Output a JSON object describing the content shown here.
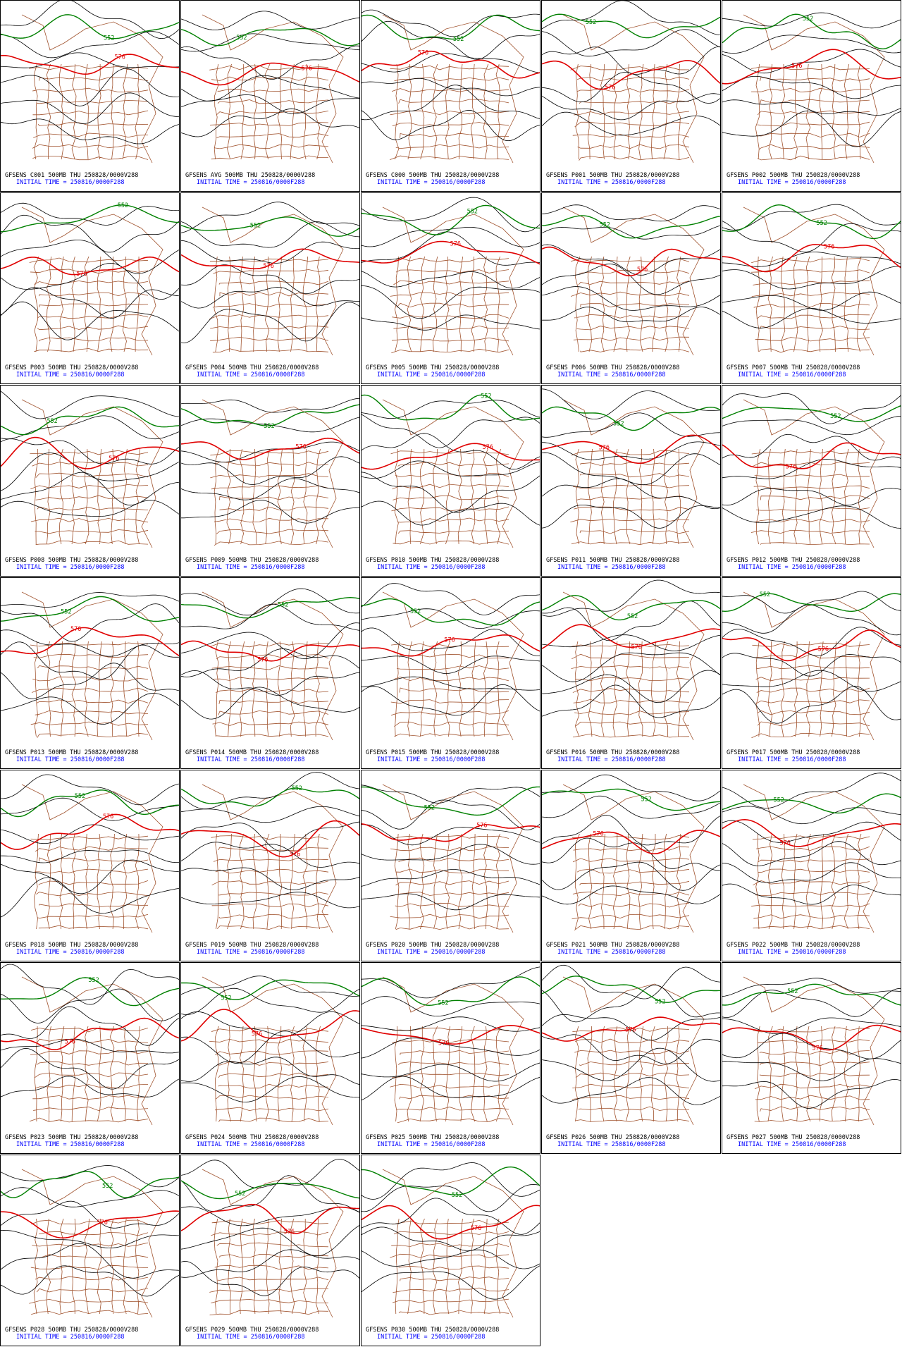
{
  "panels": [
    {
      "line1": "GFSENS C001 500MB THU 250828/0000V288",
      "line2": "INITIAL TIME = 250816/0000F288",
      "labels": [
        "552",
        "576"
      ]
    },
    {
      "line1": "GFSENS AVG 500MB THU 250828/0000V288",
      "line2": "INITIAL TIME = 250816/0000F288",
      "labels": [
        "552",
        "576"
      ]
    },
    {
      "line1": "GFSENS C000 500MB THU 250828/0000V288",
      "line2": "INITIAL TIME = 250816/0000F288",
      "labels": [
        "552",
        "576"
      ]
    },
    {
      "line1": "GFSENS P001 500MB THU 250828/0000V288",
      "line2": "INITIAL TIME = 250816/0000F288",
      "labels": [
        "552",
        "576"
      ]
    },
    {
      "line1": "GFSENS P002 500MB THU 250828/0000V288",
      "line2": "INITIAL TIME = 250816/0000F288",
      "labels": [
        "552",
        "576"
      ]
    },
    {
      "line1": "GFSENS P003 500MB THU 250828/0000V288",
      "line2": "INITIAL TIME = 250816/0000F288",
      "labels": [
        "552",
        "576"
      ]
    },
    {
      "line1": "GFSENS P004 500MB THU 250828/0000V288",
      "line2": "INITIAL TIME = 250816/0000F288",
      "labels": [
        "552",
        "576"
      ]
    },
    {
      "line1": "GFSENS P005 500MB THU 250828/0000V288",
      "line2": "INITIAL TIME = 250816/0000F288",
      "labels": [
        "552",
        "576"
      ]
    },
    {
      "line1": "GFSENS P006 500MB THU 250828/0000V288",
      "line2": "INITIAL TIME = 250816/0000F288",
      "labels": [
        "552",
        "576"
      ]
    },
    {
      "line1": "GFSENS P007 500MB THU 250828/0000V288",
      "line2": "INITIAL TIME = 250816/0000F288",
      "labels": [
        "552",
        "576"
      ]
    },
    {
      "line1": "GFSENS P008 500MB THU 250828/0000V288",
      "line2": "INITIAL TIME = 250816/0000F288",
      "labels": [
        "552",
        "576"
      ]
    },
    {
      "line1": "GFSENS P009 500MB THU 250828/0000V288",
      "line2": "INITIAL TIME = 250816/0000F288",
      "labels": [
        "552",
        "576"
      ]
    },
    {
      "line1": "GFSENS P010 500MB THU 250828/0000V288",
      "line2": "INITIAL TIME = 250816/0000F288",
      "labels": [
        "552",
        "576"
      ]
    },
    {
      "line1": "GFSENS P011 500MB THU 250828/0000V288",
      "line2": "INITIAL TIME = 250816/0000F288",
      "labels": [
        "552",
        "576"
      ]
    },
    {
      "line1": "GFSENS P012 500MB THU 250828/0000V288",
      "line2": "INITIAL TIME = 250816/0000F288",
      "labels": [
        "552",
        "576"
      ]
    },
    {
      "line1": "GFSENS P013 500MB THU 250828/0000V288",
      "line2": "INITIAL TIME = 250816/0000F288",
      "labels": [
        "552",
        "576"
      ]
    },
    {
      "line1": "GFSENS P014 500MB THU 250828/0000V288",
      "line2": "INITIAL TIME = 250816/0000F288",
      "labels": [
        "552",
        "576"
      ]
    },
    {
      "line1": "GFSENS P015 500MB THU 250828/0000V288",
      "line2": "INITIAL TIME = 250816/0000F288",
      "labels": [
        "552",
        "576"
      ]
    },
    {
      "line1": "GFSENS P016 500MB THU 250828/0000V288",
      "line2": "INITIAL TIME = 250816/0000F288",
      "labels": [
        "552",
        "576"
      ]
    },
    {
      "line1": "GFSENS P017 500MB THU 250828/0000V288",
      "line2": "INITIAL TIME = 250816/0000F288",
      "labels": [
        "552",
        "576"
      ]
    },
    {
      "line1": "GFSENS P018 500MB THU 250828/0000V288",
      "line2": "INITIAL TIME = 250816/0000F288",
      "labels": [
        "552",
        "576"
      ]
    },
    {
      "line1": "GFSENS P019 500MB THU 250828/0000V288",
      "line2": "INITIAL TIME = 250816/0000F288",
      "labels": [
        "552",
        "576"
      ]
    },
    {
      "line1": "GFSENS P020 500MB THU 250828/0000V288",
      "line2": "INITIAL TIME = 250816/0000F288",
      "labels": [
        "552",
        "576"
      ]
    },
    {
      "line1": "GFSENS P021 500MB THU 250828/0000V288",
      "line2": "INITIAL TIME = 250816/0000F288",
      "labels": [
        "552",
        "576"
      ]
    },
    {
      "line1": "GFSENS P022 500MB THU 250828/0000V288",
      "line2": "INITIAL TIME = 250816/0000F288",
      "labels": [
        "552",
        "576"
      ]
    },
    {
      "line1": "GFSENS P023 500MB THU 250828/0000V288",
      "line2": "INITIAL TIME = 250816/0000F288",
      "labels": [
        "552",
        "576"
      ]
    },
    {
      "line1": "GFSENS P024 500MB THU 250828/0000V288",
      "line2": "INITIAL TIME = 250816/0000F288",
      "labels": [
        "552",
        "576"
      ]
    },
    {
      "line1": "GFSENS P025 500MB THU 250828/0000V288",
      "line2": "INITIAL TIME = 250816/0000F288",
      "labels": [
        "552",
        "576"
      ]
    },
    {
      "line1": "GFSENS P026 500MB THU 250828/0000V288",
      "line2": "INITIAL TIME = 250816/0000F288",
      "labels": [
        "552",
        "576"
      ]
    },
    {
      "line1": "GFSENS P027 500MB THU 250828/0000V288",
      "line2": "INITIAL TIME = 250816/0000F288",
      "labels": [
        "552",
        "576"
      ]
    },
    {
      "line1": "GFSENS P028 500MB THU 250828/0000V288",
      "line2": "INITIAL TIME = 250816/0000F288",
      "labels": [
        "552",
        "576"
      ]
    },
    {
      "line1": "GFSENS P029 500MB THU 250828/0000V288",
      "line2": "INITIAL TIME = 250816/0000F288",
      "labels": [
        "552",
        "576"
      ]
    },
    {
      "line1": "GFSENS P030 500MB THU 250828/0000V288",
      "line2": "INITIAL TIME = 250816/0000F288",
      "labels": [
        "552",
        "576"
      ]
    }
  ]
}
